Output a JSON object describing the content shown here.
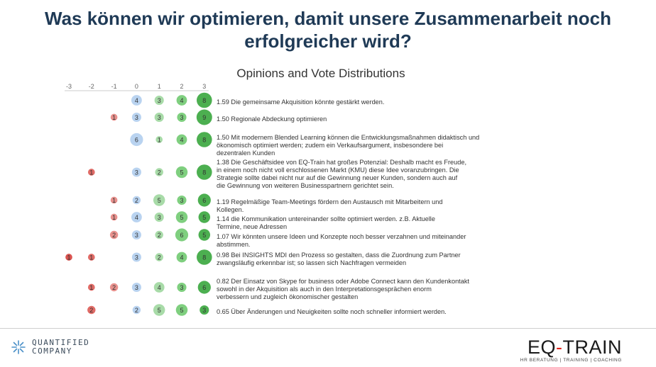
{
  "slide": {
    "title_line1": "Was können wir optimieren, damit unsere Zusammenarbeit noch",
    "title_line2": "erfolgreicher wird?"
  },
  "chart_data": {
    "type": "dot-matrix",
    "title": "Opinions and Vote Distributions",
    "scale": [
      -3,
      -2,
      -1,
      0,
      1,
      2,
      3
    ],
    "colors": {
      "-3": "#d9534f",
      "-2": "#e06b66",
      "-1": "#e8918d",
      "0": "#b9d3f0",
      "1": "#a8dba8",
      "2": "#7fcf7f",
      "3": "#4caf50"
    },
    "rows": [
      {
        "score": "1.59",
        "label": "Die gemeinsame Akquisition könnte gestärkt werden.",
        "votes": {
          "0": 4,
          "1": 3,
          "2": 4,
          "3": 8
        }
      },
      {
        "score": "1.50",
        "label": "Regionale Abdeckung optimieren",
        "votes": {
          "-1": 1,
          "0": 3,
          "1": 3,
          "2": 3,
          "3": 9
        }
      },
      {
        "score": "1.50",
        "label": "Mit modernem Blended Learning können die Entwicklungsmaßnahmen didaktisch und ökonomisch optimiert werden; zudem ein Verkaufsargument, insbesondere bei dezentralen Kunden",
        "votes": {
          "0": 6,
          "1": 1,
          "2": 4,
          "3": 8
        }
      },
      {
        "score": "1.38",
        "label": "Die Geschäftsidee von EQ-Train hat großes Potenzial: Deshalb macht es Freude, in einem noch nicht voll erschlossenen Markt (KMU) diese Idee voranzubringen. Die Strategie sollte dabei nicht nur auf die Gewinnung neuer Kunden, sondern auch auf die Gewinnung von weiteren Businesspartnern gerichtet sein.",
        "votes": {
          "-2": 1,
          "0": 3,
          "1": 2,
          "2": 5,
          "3": 8
        }
      },
      {
        "score": "1.19",
        "label": "Regelmäßige Team-Meetings fördern den Austausch mit Mitarbeitern und Kollegen.",
        "votes": {
          "-1": 1,
          "0": 2,
          "1": 5,
          "2": 3,
          "3": 6
        }
      },
      {
        "score": "1.14",
        "label": "die Kommunikation untereinander sollte optimiert werden. z.B. Aktuelle Termine, neue Adressen",
        "votes": {
          "-1": 1,
          "0": 4,
          "1": 3,
          "2": 5,
          "3": 5
        }
      },
      {
        "score": "1.07",
        "label": "Wir könnten unsere Ideen und Konzepte noch besser verzahnen und miteinander abstimmen.",
        "votes": {
          "-1": 2,
          "0": 3,
          "1": 2,
          "2": 6,
          "3": 5
        }
      },
      {
        "score": "0.98",
        "label": "Bei INSIGHTS MDI den Prozess so gestalten, dass die Zuordnung zum Partner zwangsläufig erkennbar ist; so lassen sich Nachfragen vermeiden",
        "votes": {
          "-3": 1,
          "-2": 1,
          "0": 3,
          "1": 2,
          "2": 4,
          "3": 8
        }
      },
      {
        "score": "0.82",
        "label": "Der Einsatz von Skype for business oder Adobe Connect kann den Kundenkontakt sowohl in der Akquisition als auch in den Interpretationsgesprächen enorm verbessern und zugleich ökonomischer gestalten",
        "votes": {
          "-2": 1,
          "-1": 2,
          "0": 3,
          "1": 4,
          "2": 3,
          "3": 6
        }
      },
      {
        "score": "0.65",
        "label": "Über Änderungen und Neuigkeiten sollte noch schneller informiert werden.",
        "votes": {
          "-2": 2,
          "0": 2,
          "1": 5,
          "2": 5,
          "3": 3
        }
      }
    ]
  },
  "logos": {
    "left_line1": "QUANTIFIED",
    "left_line2": "COMPANY",
    "right_part1": "EQ",
    "right_dash": "-",
    "right_part2": "TRAIN",
    "right_sub": "HR BERATUNG | TRAINING | COACHING"
  }
}
